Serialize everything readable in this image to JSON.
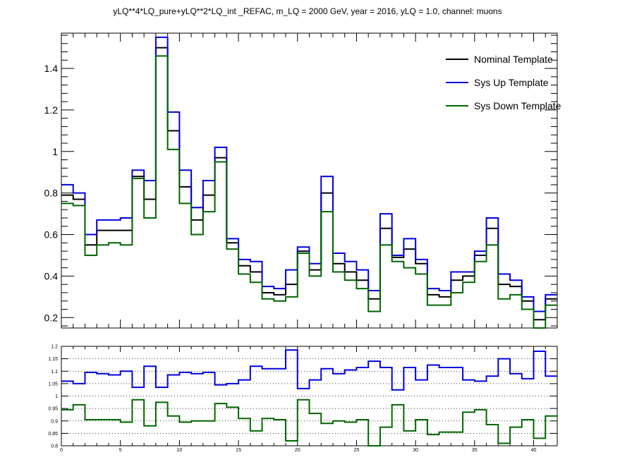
{
  "title": "yLQ**4*LQ_pure+yLQ**2*LQ_int _REFAC, m_LQ = 2000 GeV, year = 2016, yLQ = 1.0, channel: muons",
  "colors": {
    "nominal": "#000000",
    "up": "#0000dd",
    "down": "#006600"
  },
  "chart_data": [
    {
      "type": "line",
      "style": "step histogram",
      "panel": "main",
      "x_edges": [
        0,
        1,
        2,
        3,
        4,
        5,
        6,
        7,
        8,
        9,
        10,
        11,
        12,
        13,
        14,
        15,
        16,
        17,
        18,
        19,
        20,
        21,
        22,
        23,
        24,
        25,
        26,
        27,
        28,
        29,
        30,
        31,
        32,
        33,
        34,
        35,
        36,
        37,
        38,
        39,
        40,
        41,
        42
      ],
      "xlim": [
        0,
        42
      ],
      "ylim": [
        0.15,
        1.57
      ],
      "yticks": [
        0.2,
        0.4,
        0.6,
        0.8,
        1,
        1.2,
        1.4
      ],
      "ytick_labels": [
        "0.2",
        "0.4",
        "0.6",
        "0.8",
        "1",
        "1.2",
        "1.4"
      ],
      "legend": {
        "placement": "top-right"
      },
      "series": [
        {
          "name": "Nominal Template",
          "color": "nominal",
          "values": [
            0.79,
            0.77,
            0.55,
            0.62,
            0.62,
            0.62,
            0.88,
            0.77,
            1.5,
            1.1,
            0.83,
            0.67,
            0.79,
            0.97,
            0.56,
            0.45,
            0.42,
            0.32,
            0.31,
            0.36,
            0.52,
            0.43,
            0.8,
            0.46,
            0.42,
            0.38,
            0.29,
            0.63,
            0.49,
            0.53,
            0.46,
            0.31,
            0.3,
            0.38,
            0.4,
            0.5,
            0.63,
            0.36,
            0.35,
            0.28,
            0.19,
            0.29
          ]
        },
        {
          "name": "Sys Up Template",
          "color": "up",
          "values": [
            0.84,
            0.8,
            0.6,
            0.67,
            0.67,
            0.68,
            0.91,
            0.86,
            1.55,
            1.19,
            0.91,
            0.73,
            0.86,
            1.02,
            0.58,
            0.48,
            0.47,
            0.35,
            0.34,
            0.43,
            0.54,
            0.46,
            0.88,
            0.51,
            0.47,
            0.43,
            0.33,
            0.7,
            0.5,
            0.58,
            0.48,
            0.34,
            0.33,
            0.42,
            0.42,
            0.52,
            0.68,
            0.41,
            0.38,
            0.3,
            0.23,
            0.31
          ]
        },
        {
          "name": "Sys Down Template",
          "color": "down",
          "values": [
            0.75,
            0.74,
            0.5,
            0.55,
            0.56,
            0.55,
            0.87,
            0.68,
            1.46,
            1.01,
            0.75,
            0.6,
            0.71,
            0.95,
            0.53,
            0.41,
            0.37,
            0.29,
            0.28,
            0.3,
            0.51,
            0.4,
            0.71,
            0.42,
            0.38,
            0.34,
            0.23,
            0.55,
            0.47,
            0.44,
            0.41,
            0.26,
            0.26,
            0.32,
            0.37,
            0.47,
            0.55,
            0.29,
            0.31,
            0.24,
            0.15,
            0.26
          ]
        }
      ]
    },
    {
      "type": "line",
      "style": "step histogram",
      "panel": "ratio",
      "x_edges": [
        0,
        1,
        2,
        3,
        4,
        5,
        6,
        7,
        8,
        9,
        10,
        11,
        12,
        13,
        14,
        15,
        16,
        17,
        18,
        19,
        20,
        21,
        22,
        23,
        24,
        25,
        26,
        27,
        28,
        29,
        30,
        31,
        32,
        33,
        34,
        35,
        36,
        37,
        38,
        39,
        40,
        41,
        42
      ],
      "xlim": [
        0,
        42
      ],
      "ylim": [
        0.8,
        1.2
      ],
      "xticks": [
        0,
        5,
        10,
        15,
        20,
        25,
        30,
        35,
        40
      ],
      "xtick_labels": [
        "0",
        "5",
        "10",
        "15",
        "20",
        "25",
        "30",
        "35",
        "40"
      ],
      "yticks": [
        0.8,
        0.85,
        0.9,
        0.95,
        1,
        1.05,
        1.1,
        1.15,
        1.2
      ],
      "ytick_labels": [
        "0.8",
        "0.85",
        "0.9",
        "0.95",
        "1",
        "1.05",
        "1.1",
        "1.15",
        "1.2"
      ],
      "grid": true,
      "series": [
        {
          "color": "up",
          "values": [
            1.06,
            1.05,
            1.095,
            1.09,
            1.085,
            1.1,
            1.035,
            1.12,
            1.035,
            1.085,
            1.095,
            1.09,
            1.095,
            1.045,
            1.05,
            1.065,
            1.12,
            1.11,
            1.11,
            1.185,
            1.03,
            1.065,
            1.11,
            1.09,
            1.105,
            1.115,
            1.14,
            1.115,
            1.025,
            1.115,
            1.065,
            1.125,
            1.115,
            1.115,
            1.065,
            1.06,
            1.08,
            1.15,
            1.09,
            1.07,
            1.18,
            1.08
          ]
        },
        {
          "color": "down",
          "values": [
            0.945,
            0.965,
            0.905,
            0.905,
            0.905,
            0.895,
            0.985,
            0.88,
            0.975,
            0.92,
            0.895,
            0.9,
            0.9,
            0.97,
            0.955,
            0.91,
            0.86,
            0.91,
            0.905,
            0.82,
            0.985,
            0.93,
            0.89,
            0.9,
            0.895,
            0.905,
            0.8,
            0.875,
            0.965,
            0.86,
            0.905,
            0.845,
            0.855,
            0.855,
            0.935,
            0.945,
            0.885,
            0.81,
            0.875,
            0.905,
            0.83,
            0.92
          ]
        }
      ]
    }
  ]
}
